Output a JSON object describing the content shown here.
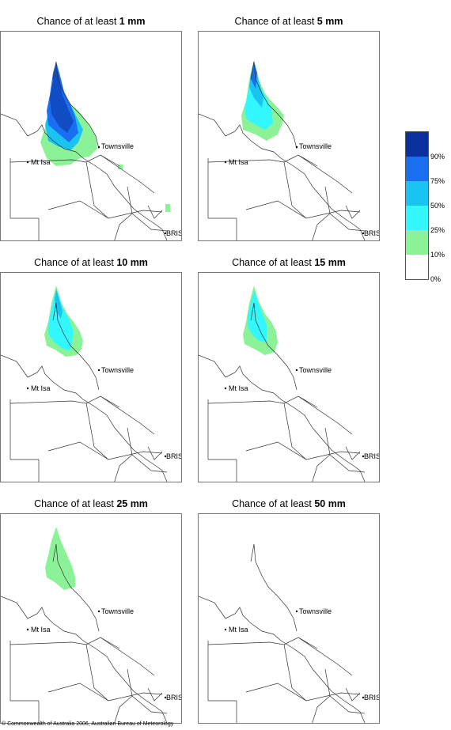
{
  "panels": [
    {
      "prefix": "Chance of at least",
      "amount": "1 mm"
    },
    {
      "prefix": "Chance of at least",
      "amount": "5 mm"
    },
    {
      "prefix": "Chance of at least",
      "amount": "10 mm"
    },
    {
      "prefix": "Chance of at least",
      "amount": "15 mm"
    },
    {
      "prefix": "Chance of at least",
      "amount": "25 mm"
    },
    {
      "prefix": "Chance of at least",
      "amount": "50 mm"
    }
  ],
  "places": {
    "townsville": "Townsville",
    "mt_isa": "Mt Isa",
    "brisbane": "BRIS"
  },
  "legend": {
    "labels": [
      "90%",
      "75%",
      "50%",
      "25%",
      "10%",
      "0%"
    ],
    "colors": [
      "#0a2f9e",
      "#1a6ff0",
      "#19c3f2",
      "#33f7ff",
      "#8cf297",
      "#ffffff"
    ]
  },
  "copyright": "© Commonwealth of Australia 2006, Australian Bureau of Meteorology"
}
